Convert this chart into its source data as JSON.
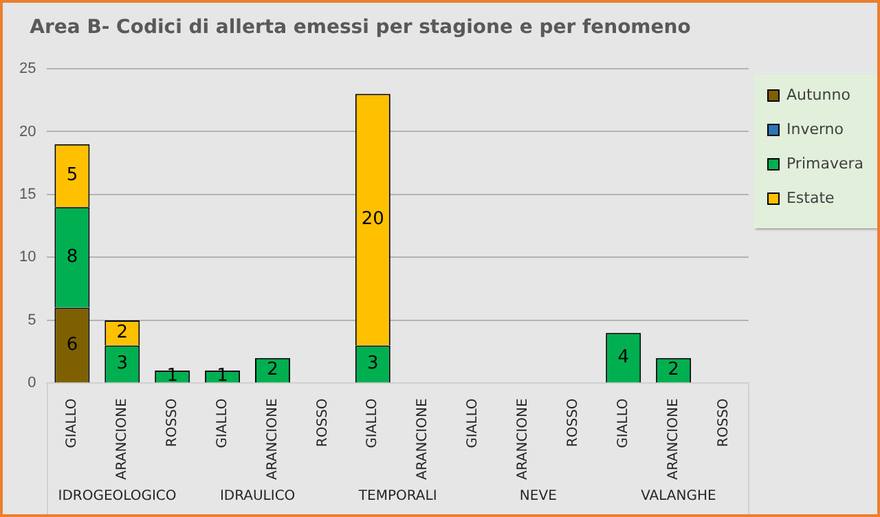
{
  "chart_data": {
    "type": "bar",
    "title": "Area B- Codici di allerta emessi per stagione e per fenomeno",
    "categories": [
      "GIALLO",
      "ARANCIONE",
      "ROSSO",
      "GIALLO",
      "ARANCIONE",
      "ROSSO",
      "GIALLO",
      "ARANCIONE",
      "GIALLO",
      "ARANCIONE",
      "ROSSO",
      "GIALLO",
      "ARANCIONE",
      "ROSSO"
    ],
    "stacked": true,
    "series": [
      {
        "name": "Autunno",
        "color": "#7f6000",
        "values": [
          6,
          0,
          0,
          0,
          0,
          0,
          0,
          0,
          0,
          0,
          0,
          0,
          0,
          0
        ],
        "value_labels": [
          "6",
          null,
          null,
          null,
          null,
          null,
          null,
          null,
          null,
          null,
          null,
          null,
          null,
          null
        ]
      },
      {
        "name": "Inverno",
        "color": "#2e75b6",
        "values": [
          0,
          0,
          0,
          0,
          0,
          0,
          0,
          0,
          0,
          0,
          0,
          0,
          0,
          0
        ],
        "value_labels": [
          null,
          null,
          null,
          null,
          null,
          null,
          null,
          null,
          null,
          null,
          null,
          null,
          null,
          null
        ]
      },
      {
        "name": "Primavera",
        "color": "#00b050",
        "values": [
          8,
          3,
          1,
          1,
          2,
          0,
          3,
          0,
          0,
          0,
          0,
          4,
          2,
          0
        ],
        "value_labels": [
          "8",
          "3",
          "1",
          "1",
          "2",
          null,
          "3",
          null,
          null,
          null,
          null,
          "4",
          "2",
          null
        ]
      },
      {
        "name": "Estate",
        "color": "#ffc000",
        "values": [
          5,
          2,
          0,
          0,
          0,
          0,
          20,
          0,
          0,
          0,
          0,
          0,
          0,
          0
        ],
        "value_labels": [
          "5",
          "2",
          null,
          null,
          null,
          null,
          "20",
          null,
          null,
          null,
          null,
          null,
          null,
          null
        ]
      }
    ],
    "annotations": [
      "IDROGEOLOGICO",
      "IDRAULICO",
      "TEMPORALI",
      "NEVE",
      "VALANGHE"
    ],
    "ylim": [
      0,
      25
    ],
    "yticks": [
      0,
      5,
      10,
      15,
      20,
      25
    ],
    "grid": "y",
    "legend": "right"
  }
}
